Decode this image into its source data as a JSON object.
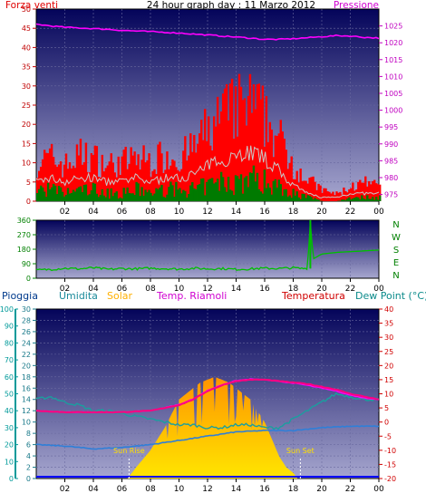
{
  "header": {
    "title": "24 hour graph day : 11 Marzo 2012",
    "left_label": "Forza venti",
    "right_label": "Pressione"
  },
  "legend": {
    "pioggia": "Pioggia",
    "umidita": "Umidita",
    "solar": "Solar",
    "temp_riamoli": "Temp. Riamoli",
    "temperatura": "Temperatura",
    "dew_point": "Dew Point (°C)"
  },
  "annotations": {
    "sun_rise": "Sun Rise",
    "sun_set": "Sun Set"
  },
  "colors": {
    "plot_top": "#04045a",
    "plot_bottom": "#a7a7cf",
    "wind_red": "#ff0000",
    "wind_green": "#007a00",
    "wind_gray": "#c8c8c8",
    "pressure": "#ff00ff",
    "direction": "#00c000",
    "solar": "#ffc800",
    "temperature": "#ff0080",
    "dew": "#2f7fd8",
    "humidity": "#1a9f9f",
    "rain": "#009a9a"
  },
  "chart_data": [
    {
      "type": "area",
      "title": "24 hour graph day : 11 Marzo 2012",
      "xlabel": "",
      "x_ticks": [
        "02",
        "04",
        "06",
        "08",
        "10",
        "12",
        "14",
        "16",
        "18",
        "20",
        "22",
        "00"
      ],
      "xlim": [
        0,
        24
      ],
      "left_axis": {
        "label": "Forza venti",
        "ylim": [
          0,
          50
        ],
        "ticks": [
          0,
          5,
          10,
          15,
          20,
          25,
          30,
          35,
          40,
          45,
          50
        ]
      },
      "right_axis": {
        "label": "Pressione",
        "ylim": [
          973,
          1030
        ],
        "ticks": [
          975,
          980,
          985,
          990,
          995,
          1000,
          1005,
          1010,
          1015,
          1020,
          1025
        ]
      },
      "grid": true,
      "series": [
        {
          "name": "Pressione",
          "axis": "right",
          "x": [
            0,
            1,
            2,
            3,
            4,
            5,
            6,
            7,
            8,
            9,
            10,
            11,
            12,
            13,
            14,
            15,
            16,
            17,
            18,
            19,
            20,
            21,
            22,
            23,
            24
          ],
          "values": [
            1025.5,
            1025,
            1024.6,
            1024.4,
            1024.2,
            1024,
            1023.7,
            1023.5,
            1023.3,
            1023.1,
            1022.9,
            1022.6,
            1022.3,
            1022,
            1021.7,
            1021.4,
            1021,
            1021,
            1021.2,
            1021.5,
            1021.8,
            1022.1,
            1022,
            1021.6,
            1021.4
          ]
        },
        {
          "name": "gust",
          "axis": "left",
          "x": [
            0,
            1,
            2,
            3,
            4,
            5,
            6,
            7,
            8,
            9,
            10,
            11,
            12,
            13,
            14,
            15,
            16,
            17,
            18,
            19,
            20,
            21,
            22,
            23,
            24
          ],
          "values": [
            11,
            12,
            10,
            13,
            12,
            10,
            11,
            12,
            11,
            13,
            12,
            15,
            20,
            24,
            26,
            27,
            23,
            17,
            10,
            6,
            3,
            2,
            4,
            5,
            4
          ]
        },
        {
          "name": "average",
          "axis": "left",
          "x": [
            0,
            1,
            2,
            3,
            4,
            5,
            6,
            7,
            8,
            9,
            10,
            11,
            12,
            13,
            14,
            15,
            16,
            17,
            18,
            19,
            20,
            21,
            22,
            23,
            24
          ],
          "values": [
            5,
            6,
            5,
            6,
            6,
            5,
            5,
            6,
            5,
            6,
            6,
            7,
            9,
            11,
            12,
            13,
            11,
            8,
            4,
            2,
            1,
            1,
            2,
            2,
            2
          ]
        },
        {
          "name": "minimum",
          "axis": "left",
          "x": [
            0,
            1,
            2,
            3,
            4,
            5,
            6,
            7,
            8,
            9,
            10,
            11,
            12,
            13,
            14,
            15,
            16,
            17,
            18,
            19,
            20,
            21,
            22,
            23,
            24
          ],
          "values": [
            3,
            3,
            2,
            3,
            3,
            2,
            2,
            3,
            2,
            3,
            3,
            3,
            4,
            5,
            5,
            6,
            5,
            4,
            2,
            1,
            0,
            0,
            1,
            1,
            1
          ]
        }
      ]
    },
    {
      "type": "line",
      "xlim": [
        0,
        24
      ],
      "left_axis": {
        "ylim": [
          0,
          360
        ],
        "ticks": [
          0,
          90,
          180,
          270,
          360
        ]
      },
      "right_labels": [
        "N",
        "W",
        "S",
        "E",
        "N"
      ],
      "grid": true,
      "series": [
        {
          "name": "direction",
          "x": [
            0,
            1,
            2,
            3,
            4,
            5,
            6,
            7,
            8,
            9,
            10,
            11,
            12,
            13,
            14,
            15,
            16,
            17,
            18,
            18.5,
            19,
            19.2,
            19.4,
            19.6,
            20,
            21,
            22,
            23,
            24
          ],
          "values": [
            50,
            55,
            62,
            58,
            65,
            55,
            60,
            58,
            62,
            60,
            56,
            62,
            58,
            60,
            55,
            58,
            62,
            60,
            65,
            60,
            62,
            345,
            120,
            130,
            150,
            160,
            165,
            170,
            175
          ]
        }
      ]
    },
    {
      "type": "area",
      "xlim": [
        0,
        24
      ],
      "x_ticks": [
        "02",
        "04",
        "06",
        "08",
        "10",
        "12",
        "14",
        "16",
        "18",
        "20",
        "22",
        "00"
      ],
      "axes": [
        {
          "label": "Pioggia",
          "ylim": [
            0,
            100
          ],
          "ticks": [
            0,
            10,
            20,
            30,
            40,
            50,
            60,
            70,
            80,
            90,
            100
          ]
        },
        {
          "label": "Umidita",
          "ylim": [
            0,
            30
          ],
          "ticks": [
            0,
            2,
            4,
            6,
            8,
            10,
            12,
            14,
            16,
            18,
            20,
            22,
            24,
            26,
            28,
            30
          ]
        },
        {
          "label": "Dew Point (°C)",
          "ylim": [
            -20,
            40
          ],
          "ticks": [
            -20,
            -15,
            -10,
            -5,
            0,
            5,
            10,
            15,
            20,
            25,
            30,
            35,
            40
          ]
        }
      ],
      "grid": true,
      "series": [
        {
          "name": "Solar",
          "x": [
            0,
            5.5,
            6.4,
            7,
            8,
            9,
            10,
            10.5,
            11,
            11.5,
            12,
            12.5,
            13,
            13.5,
            14,
            14.5,
            15,
            15.5,
            16,
            16.5,
            17,
            17.5,
            18,
            18.3,
            24
          ],
          "values": [
            0,
            0,
            0,
            2,
            5,
            9,
            14,
            15,
            16,
            17,
            17.5,
            18,
            17.5,
            17,
            16,
            15,
            14,
            12,
            10,
            7,
            4,
            2,
            1,
            0,
            0
          ]
        },
        {
          "name": "Temperatura",
          "x": [
            0,
            2,
            4,
            6,
            8,
            10,
            11,
            12,
            13,
            14,
            15,
            16,
            17,
            18,
            19,
            20,
            21,
            22,
            23,
            24
          ],
          "values": [
            4,
            3.5,
            3.5,
            3.5,
            4,
            6,
            8,
            11,
            13,
            14.5,
            15,
            15,
            14.5,
            14,
            13.5,
            12.5,
            11.5,
            10,
            9,
            8
          ]
        },
        {
          "name": "Temp. Riamoli",
          "x": [
            0,
            2,
            4,
            6,
            8,
            10,
            11,
            12,
            13,
            14,
            15,
            16,
            17,
            18,
            19,
            20,
            21,
            22,
            23,
            24
          ],
          "values": [
            4,
            3.5,
            3.5,
            3.5,
            4,
            6.2,
            8.2,
            11.2,
            13.2,
            14.7,
            15.2,
            15,
            14.3,
            13.8,
            13,
            12,
            11,
            9.5,
            8.5,
            8
          ]
        },
        {
          "name": "Dew Point (°C)",
          "x": [
            0,
            2,
            4,
            6,
            8,
            10,
            12,
            14,
            16,
            18,
            20,
            22,
            24
          ],
          "values": [
            -8,
            -8.5,
            -9.5,
            -9,
            -8,
            -6.5,
            -5,
            -3.5,
            -3,
            -3,
            -2,
            -1.5,
            -1.5
          ]
        },
        {
          "name": "Umidita",
          "x": [
            0,
            1,
            2,
            3,
            4,
            5,
            6,
            7,
            8,
            9,
            10,
            11,
            12,
            13,
            14,
            15,
            16,
            17,
            18,
            19,
            20,
            21,
            22,
            23,
            24
          ],
          "values": [
            14,
            14.5,
            13.5,
            13,
            12,
            12,
            11.5,
            11,
            10.5,
            10,
            9.5,
            9.5,
            9,
            9,
            9.5,
            9.5,
            9,
            9,
            10.5,
            12,
            13.5,
            15,
            14.5,
            14,
            14
          ]
        },
        {
          "name": "Pioggia",
          "x": [
            0,
            24
          ],
          "values": [
            0,
            0
          ]
        }
      ],
      "markers": [
        {
          "label": "Sun Rise",
          "x": 6.5
        },
        {
          "label": "Sun Set",
          "x": 18.5
        }
      ]
    }
  ]
}
